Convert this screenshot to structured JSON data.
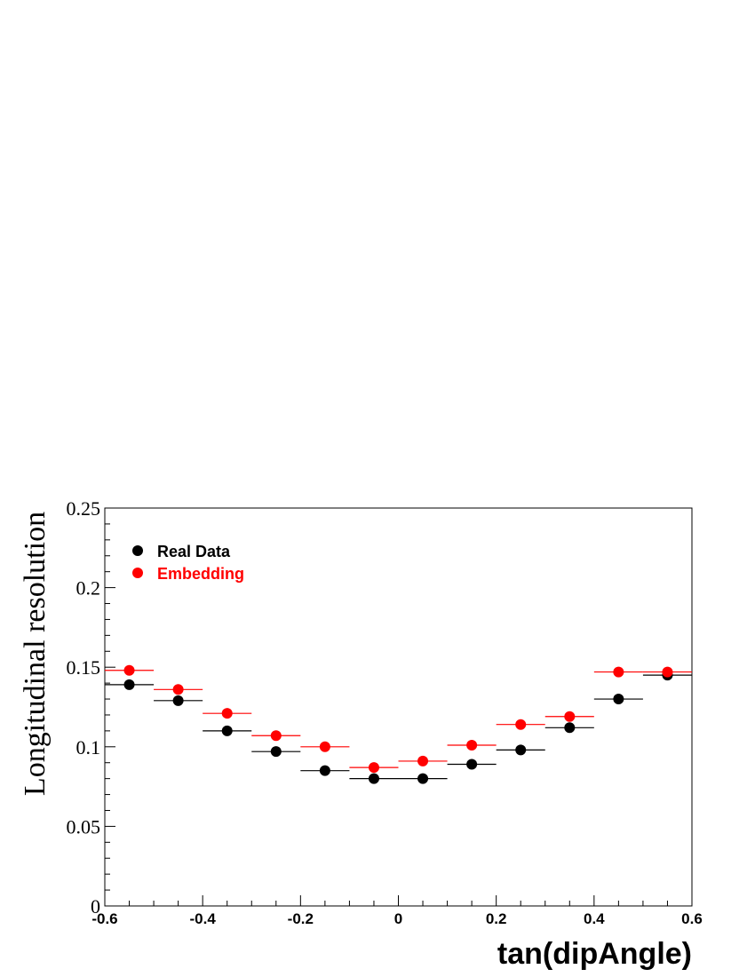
{
  "chart_data": {
    "type": "scatter",
    "xlabel": "tan(dipAngle)",
    "ylabel": "Longitudinal resolution",
    "xlim": [
      -0.6,
      0.6
    ],
    "ylim": [
      0,
      0.25
    ],
    "x_ticks": [
      "-0.6",
      "-0.4",
      "-0.2",
      "0",
      "0.2",
      "0.4",
      "0.6"
    ],
    "y_ticks": [
      "0",
      "0.05",
      "0.1",
      "0.15",
      "0.2",
      "0.25"
    ],
    "grid": false,
    "legend_position": "top-left",
    "bin_width": 0.1,
    "x": [
      -0.55,
      -0.45,
      -0.35,
      -0.25,
      -0.15,
      -0.05,
      0.05,
      0.15,
      0.25,
      0.35,
      0.45,
      0.55
    ],
    "series": [
      {
        "name": "Real Data",
        "color": "#000000",
        "values": [
          0.139,
          0.129,
          0.11,
          0.097,
          0.085,
          0.08,
          0.08,
          0.089,
          0.098,
          0.112,
          0.13,
          0.145
        ]
      },
      {
        "name": "Embedding",
        "color": "#ff0000",
        "values": [
          0.148,
          0.136,
          0.121,
          0.107,
          0.1,
          0.087,
          0.091,
          0.101,
          0.114,
          0.119,
          0.147,
          0.147
        ]
      }
    ]
  }
}
